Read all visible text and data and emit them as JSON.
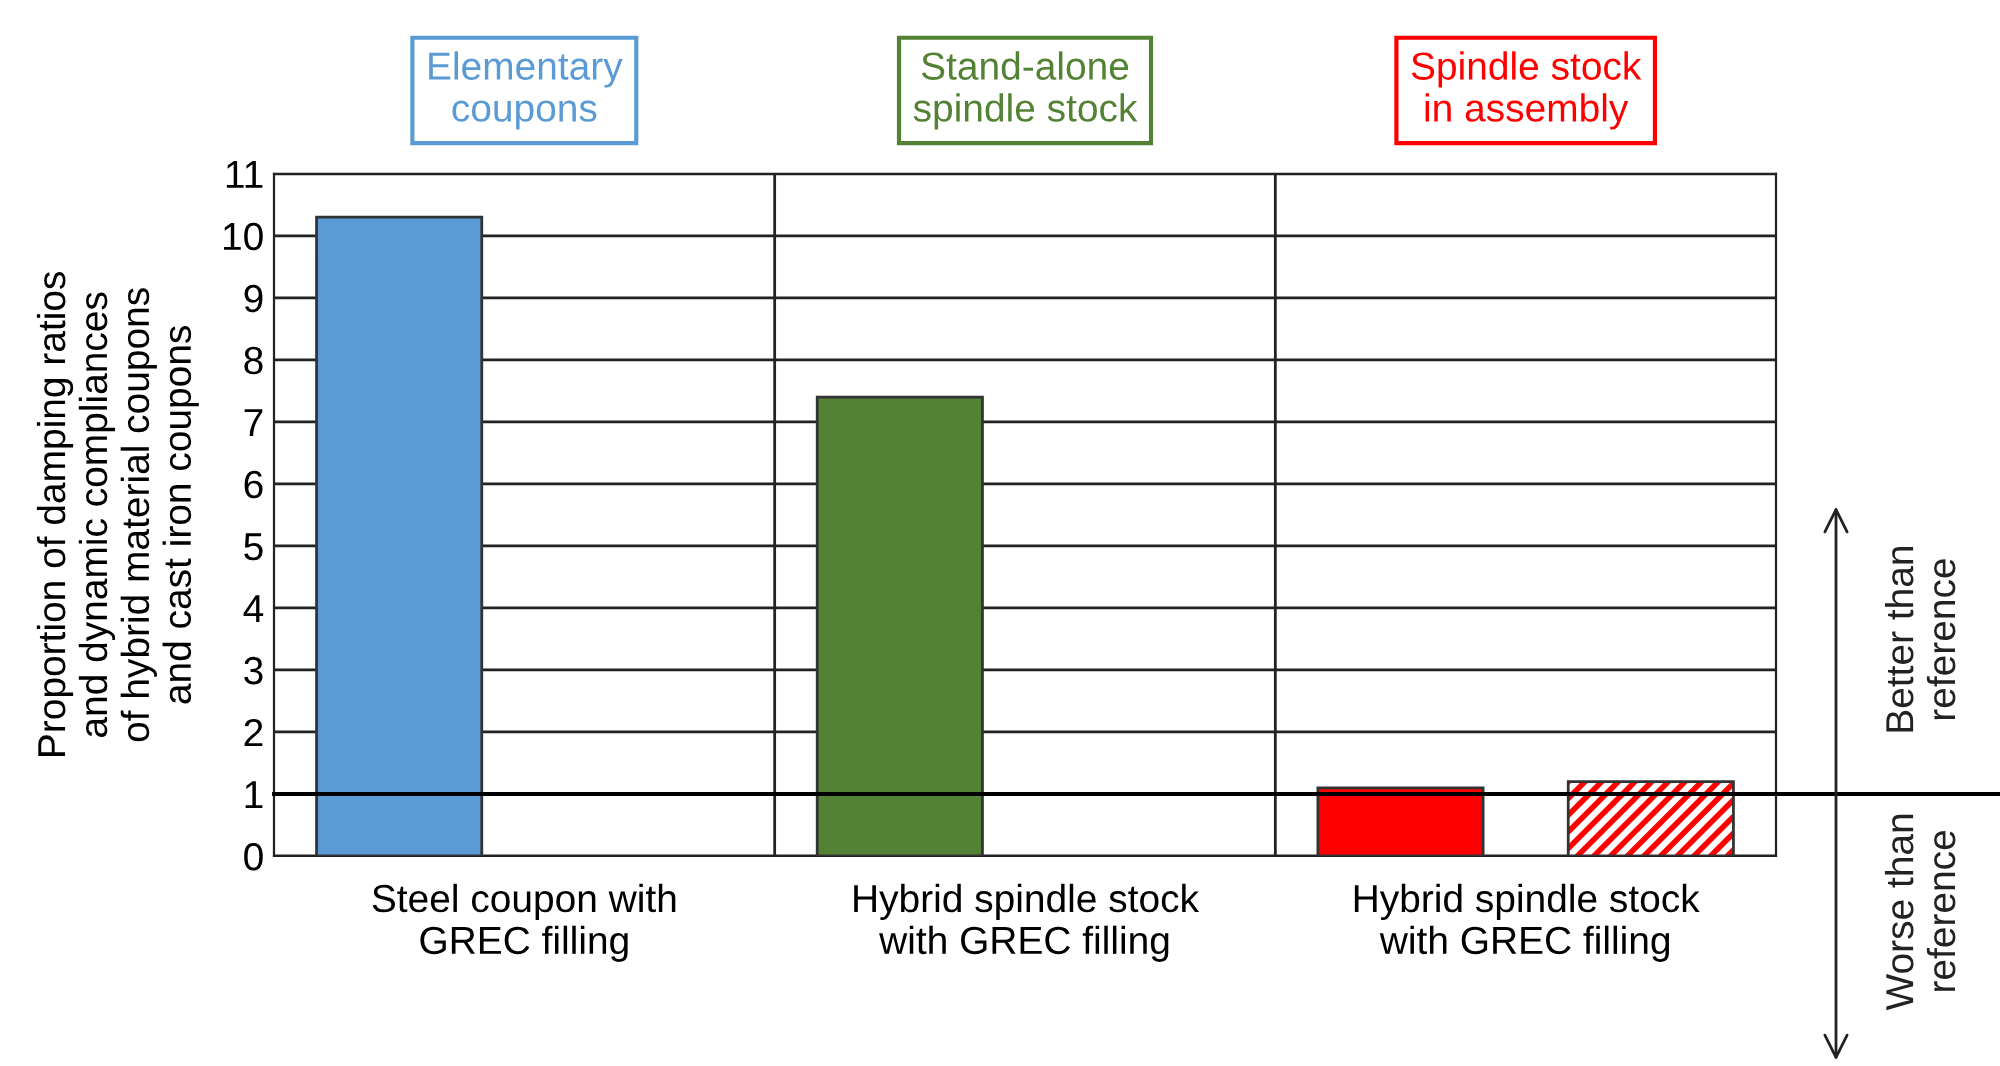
{
  "chart_data": {
    "type": "bar",
    "ylabel": "Proportion of damping ratios\nand dynamic compliances\nof hybrid material coupons\nand cast iron coupons",
    "categories": [
      "Steel coupon with\nGREC filling",
      "Hybrid spindle stock\nwith GREC filling",
      "Hybrid spindle stock\nwith GREC filling"
    ],
    "series": [
      {
        "colors": [
          "#5b9bd5",
          "#548235",
          "#ff0000"
        ],
        "values": [
          10.3,
          7.4,
          1.1
        ]
      },
      {
        "color": "#ff0000",
        "values": [
          null,
          null,
          1.2
        ]
      }
    ],
    "ylim": [
      0,
      11
    ],
    "yticks": [
      0,
      1,
      2,
      3,
      4,
      5,
      6,
      7,
      8,
      9,
      10,
      11
    ],
    "grid": "y",
    "legend": false,
    "ref_lines": [
      {
        "axis": "y",
        "value": 1,
        "label": null
      }
    ],
    "annotations": [
      "Elementary\ncoupons",
      "Stand-alone\nspindle stock",
      "Spindle stock\nin assembly",
      "Better than\nreference",
      "Worse than\nreference"
    ]
  }
}
